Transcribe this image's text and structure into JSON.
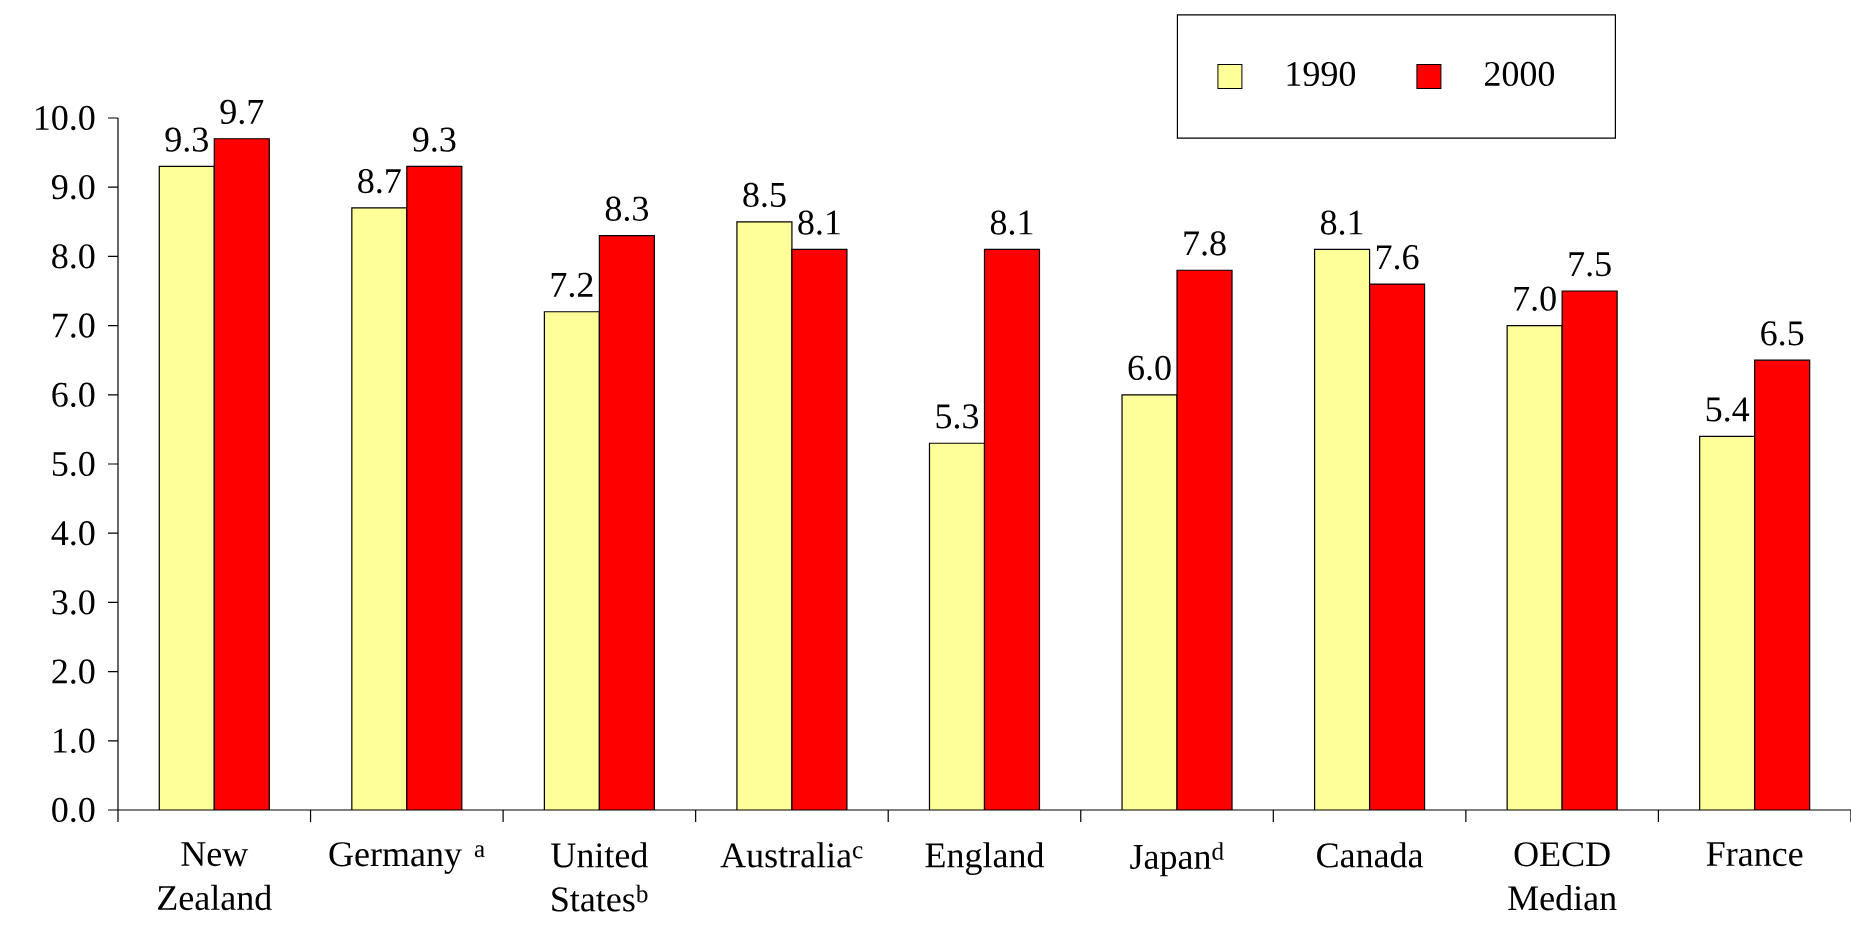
{
  "chart_data": {
    "type": "bar",
    "categories": [
      "New Zealand",
      "Germany $^{a}$",
      "United States$^{b}$",
      "Australia$^{c}$",
      "England",
      "Japan$^{d}$",
      "Canada",
      "OECD Median",
      "France"
    ],
    "series": [
      {
        "name": "1990",
        "color": "#ffff99",
        "values": [
          9.3,
          8.7,
          7.2,
          8.5,
          5.3,
          6.0,
          8.1,
          7.0,
          5.4
        ],
        "value_labels": [
          "9.3",
          "8.7",
          "7.2",
          "8.5",
          "5.3",
          "6.0",
          "8.1",
          "7.0",
          "5.4"
        ]
      },
      {
        "name": "2000",
        "color": "#ff0000",
        "values": [
          9.7,
          9.3,
          8.3,
          8.1,
          8.1,
          7.8,
          7.6,
          7.5,
          6.5
        ],
        "value_labels": [
          "9.7",
          "9.3",
          "8.3",
          "8.1",
          "8.1",
          "7.8",
          "7.6",
          "7.5",
          "6.5"
        ]
      }
    ],
    "ylim": [
      0,
      10
    ],
    "yticks": [
      {
        "value": 0,
        "label": "0.0"
      },
      {
        "value": 1,
        "label": "1.0"
      },
      {
        "value": 2,
        "label": "2.0"
      },
      {
        "value": 3,
        "label": "3.0"
      },
      {
        "value": 4,
        "label": "4.0"
      },
      {
        "value": 5,
        "label": "5.0"
      },
      {
        "value": 6,
        "label": "6.0"
      },
      {
        "value": 7,
        "label": "7.0"
      },
      {
        "value": 8,
        "label": "8.0"
      },
      {
        "value": 9,
        "label": "9.0"
      },
      {
        "value": 10,
        "label": "10.0"
      }
    ],
    "grid": false,
    "legend": "top right"
  }
}
